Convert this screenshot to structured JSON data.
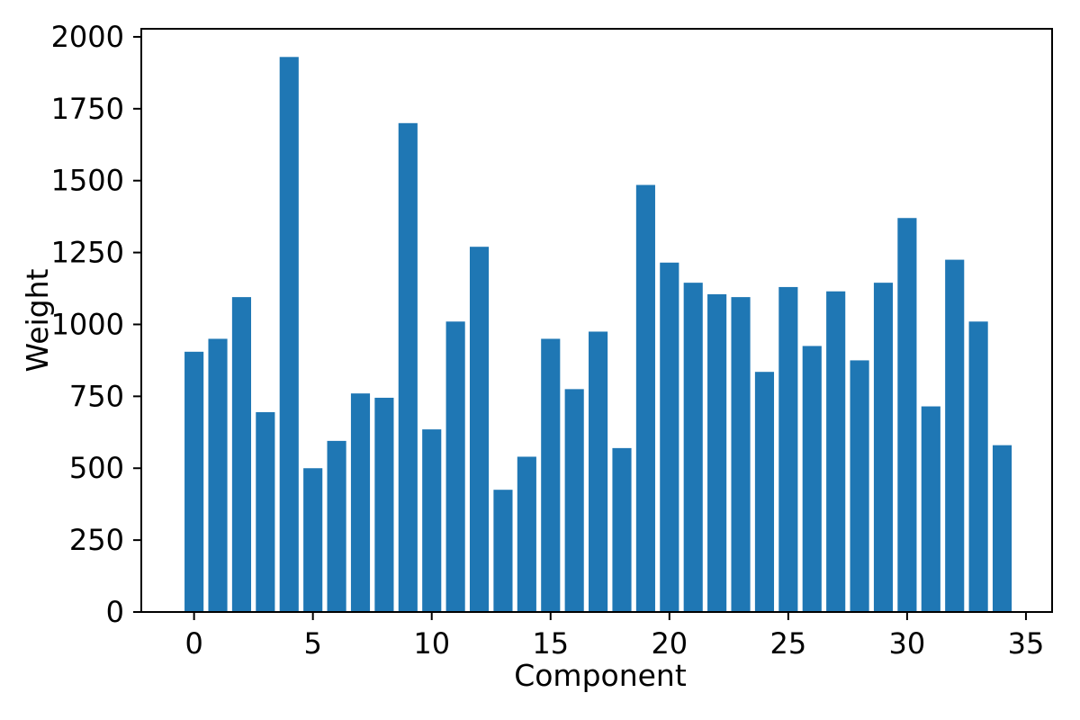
{
  "chart_data": {
    "type": "bar",
    "title": "",
    "xlabel": "Component",
    "ylabel": "Weight",
    "x": [
      0,
      1,
      2,
      3,
      4,
      5,
      6,
      7,
      8,
      9,
      10,
      11,
      12,
      13,
      14,
      15,
      16,
      17,
      18,
      19,
      20,
      21,
      22,
      23,
      24,
      25,
      26,
      27,
      28,
      29,
      30,
      31,
      32,
      33,
      34
    ],
    "values": [
      905,
      950,
      1095,
      695,
      1930,
      500,
      595,
      760,
      745,
      1700,
      635,
      1010,
      1270,
      425,
      540,
      950,
      775,
      975,
      570,
      1485,
      1215,
      1145,
      1105,
      1095,
      835,
      1130,
      925,
      1115,
      875,
      1145,
      1370,
      715,
      1225,
      1010,
      580
    ],
    "xticks": [
      0,
      5,
      10,
      15,
      20,
      25,
      30,
      35
    ],
    "yticks": [
      0,
      250,
      500,
      750,
      1000,
      1250,
      1500,
      1750,
      2000
    ],
    "xlim": [
      -2.22,
      36.1
    ],
    "ylim": [
      0,
      2028
    ],
    "bar_width": 0.8,
    "bar_color": "#1f77b4",
    "axis_color": "#000000",
    "background_color": "#ffffff",
    "grid": false,
    "legend_position": "none"
  }
}
